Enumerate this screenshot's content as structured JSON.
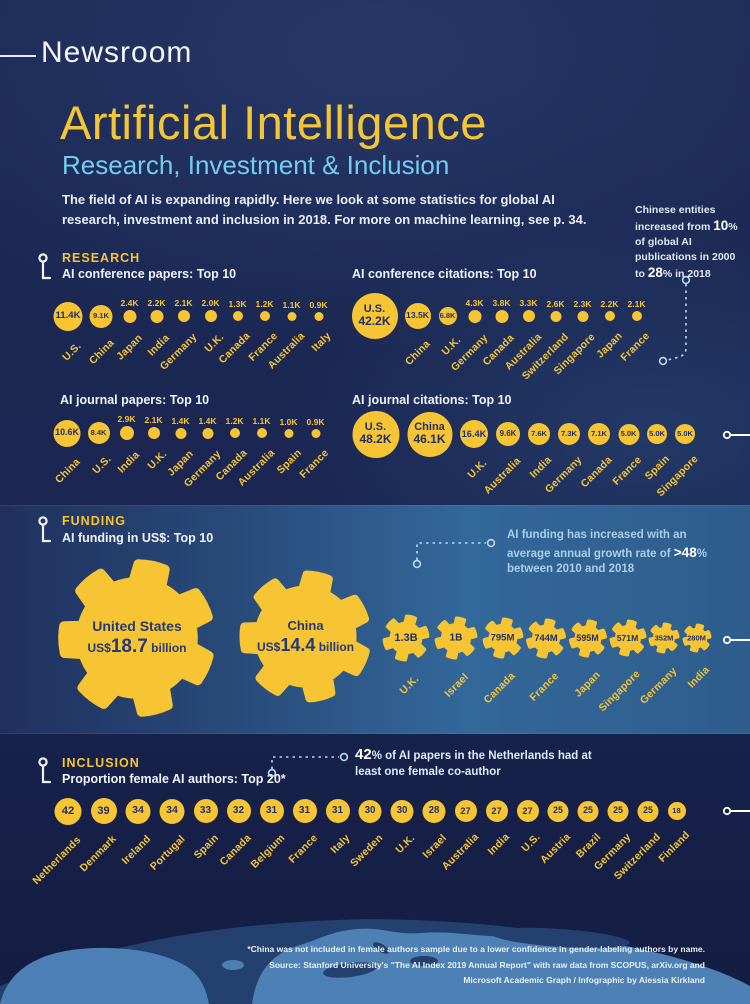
{
  "header": {
    "brand": "Newsroom"
  },
  "hero": {
    "title": "Artificial Intelligence",
    "subtitle": "Research, Investment & Inclusion",
    "intro": "The field of AI is expanding rapidly. Here we look at some statistics for global AI research, investment and inclusion in 2018. For more on machine learning, see p. 34."
  },
  "china_note": {
    "t1": "Chinese entities increased from ",
    "b1": "10",
    "t2": "% of global AI publications in 2000 to ",
    "b2": "28",
    "t3": "% in 2018"
  },
  "research": {
    "heading": "RESEARCH",
    "charts": [
      {
        "title": "AI conference papers: Top 10",
        "items": [
          {
            "label": "U.S.",
            "value": "11.4K",
            "size": 29,
            "vin": true
          },
          {
            "label": "China",
            "value": "9.1K",
            "size": 23,
            "vin": true
          },
          {
            "label": "Japan",
            "value": "2.4K",
            "size": 13
          },
          {
            "label": "India",
            "value": "2.2K",
            "size": 13
          },
          {
            "label": "Germany",
            "value": "2.1K",
            "size": 12
          },
          {
            "label": "U.K.",
            "value": "2.0K",
            "size": 12
          },
          {
            "label": "Canada",
            "value": "1.3K",
            "size": 10
          },
          {
            "label": "France",
            "value": "1.2K",
            "size": 10
          },
          {
            "label": "Australia",
            "value": "1.1K",
            "size": 9
          },
          {
            "label": "Italy",
            "value": "0.9K",
            "size": 9
          }
        ]
      },
      {
        "title": "AI conference citations: Top 10",
        "items": [
          {
            "label": "U.S.",
            "value": "42.2K",
            "size": 46,
            "vin": true,
            "lin": true
          },
          {
            "label": "China",
            "value": "13.5K",
            "size": 26,
            "vin": true
          },
          {
            "label": "U.K.",
            "value": "6.8K",
            "size": 18,
            "vin": true
          },
          {
            "label": "Germany",
            "value": "4.3K",
            "size": 13
          },
          {
            "label": "Canada",
            "value": "3.8K",
            "size": 13
          },
          {
            "label": "Australia",
            "value": "3.3K",
            "size": 12
          },
          {
            "label": "Switzerland",
            "value": "2.6K",
            "size": 11
          },
          {
            "label": "Singapore",
            "value": "2.3K",
            "size": 11
          },
          {
            "label": "Japan",
            "value": "2.2K",
            "size": 10
          },
          {
            "label": "France",
            "value": "2.1K",
            "size": 10
          }
        ]
      },
      {
        "title": "AI journal papers: Top 10",
        "items": [
          {
            "label": "China",
            "value": "10.6K",
            "size": 27,
            "vin": true
          },
          {
            "label": "U.S.",
            "value": "8.4K",
            "size": 22,
            "vin": true
          },
          {
            "label": "India",
            "value": "2.9K",
            "size": 14
          },
          {
            "label": "U.K.",
            "value": "2.1K",
            "size": 12
          },
          {
            "label": "Japan",
            "value": "1.4K",
            "size": 11
          },
          {
            "label": "Germany",
            "value": "1.4K",
            "size": 11
          },
          {
            "label": "Canada",
            "value": "1.2K",
            "size": 10
          },
          {
            "label": "Australia",
            "value": "1.1K",
            "size": 10
          },
          {
            "label": "Spain",
            "value": "1.0K",
            "size": 9
          },
          {
            "label": "France",
            "value": "0.9K",
            "size": 9
          }
        ]
      },
      {
        "title": "AI journal citations: Top 10",
        "items": [
          {
            "label": "U.S.",
            "value": "48.2K",
            "size": 47,
            "vin": true,
            "lin": true
          },
          {
            "label": "China",
            "value": "46.1K",
            "size": 45,
            "vin": true,
            "lin": true
          },
          {
            "label": "U.K.",
            "value": "16.4K",
            "size": 28,
            "vin": true
          },
          {
            "label": "Australia",
            "value": "9.6K",
            "size": 24,
            "vin": true
          },
          {
            "label": "India",
            "value": "7.6K",
            "size": 22,
            "vin": true
          },
          {
            "label": "Germany",
            "value": "7.3K",
            "size": 22,
            "vin": true
          },
          {
            "label": "Canada",
            "value": "7.1K",
            "size": 22,
            "vin": true
          },
          {
            "label": "France",
            "value": "5.0K",
            "size": 21,
            "vin": true
          },
          {
            "label": "Spain",
            "value": "5.0K",
            "size": 20,
            "vin": true
          },
          {
            "label": "Singapore",
            "value": "5.0K",
            "size": 20,
            "vin": true
          }
        ]
      }
    ]
  },
  "funding": {
    "heading": "FUNDING",
    "subtitle": "AI funding in US$: Top 10",
    "note": {
      "t1": "AI funding has increased with an average annual growth rate of ",
      "b": ">48",
      "t2": "% between 2010 and 2018"
    },
    "big_gears": [
      {
        "name": "United States",
        "prefix": "US$",
        "amount": "18.7",
        "unit": " billion"
      },
      {
        "name": "China",
        "prefix": "US$",
        "amount": "14.4",
        "unit": " billion"
      }
    ],
    "small_gears": [
      {
        "label": "U.K.",
        "value": "1.3B",
        "size": 46,
        "slot": 52
      },
      {
        "label": "Israel",
        "value": "1B",
        "size": 42,
        "slot": 48
      },
      {
        "label": "Canada",
        "value": "795M",
        "size": 40,
        "slot": 45
      },
      {
        "label": "France",
        "value": "744M",
        "size": 39,
        "slot": 42
      },
      {
        "label": "Japan",
        "value": "595M",
        "size": 37,
        "slot": 41
      },
      {
        "label": "Singapore",
        "value": "571M",
        "size": 36,
        "slot": 39
      },
      {
        "label": "Germany",
        "value": "352M",
        "size": 30,
        "slot": 34
      },
      {
        "label": "India",
        "value": "280M",
        "size": 28,
        "slot": 31
      }
    ]
  },
  "inclusion": {
    "heading": "INCLUSION",
    "subtitle": "Proportion female AI authors: Top 20*",
    "note": {
      "b": "42",
      "t": "% of AI papers in the Netherlands had at least one female co-author"
    },
    "items": [
      {
        "label": "Netherlands",
        "value": "42",
        "size": 27,
        "vin": true
      },
      {
        "label": "Denmark",
        "value": "39",
        "size": 26,
        "vin": true
      },
      {
        "label": "Ireland",
        "value": "34",
        "size": 25,
        "vin": true
      },
      {
        "label": "Portugal",
        "value": "34",
        "size": 25,
        "vin": true
      },
      {
        "label": "Spain",
        "value": "33",
        "size": 24,
        "vin": true
      },
      {
        "label": "Canada",
        "value": "32",
        "size": 24,
        "vin": true
      },
      {
        "label": "Belgium",
        "value": "31",
        "size": 24,
        "vin": true
      },
      {
        "label": "France",
        "value": "31",
        "size": 24,
        "vin": true
      },
      {
        "label": "Italy",
        "value": "31",
        "size": 24,
        "vin": true
      },
      {
        "label": "Sweden",
        "value": "30",
        "size": 23,
        "vin": true
      },
      {
        "label": "U.K.",
        "value": "30",
        "size": 23,
        "vin": true
      },
      {
        "label": "Israel",
        "value": "28",
        "size": 23,
        "vin": true
      },
      {
        "label": "Australia",
        "value": "27",
        "size": 22,
        "vin": true
      },
      {
        "label": "India",
        "value": "27",
        "size": 22,
        "vin": true
      },
      {
        "label": "U.S.",
        "value": "27",
        "size": 22,
        "vin": true
      },
      {
        "label": "Austria",
        "value": "25",
        "size": 21,
        "vin": true
      },
      {
        "label": "Brazil",
        "value": "25",
        "size": 21,
        "vin": true
      },
      {
        "label": "Germany",
        "value": "25",
        "size": 21,
        "vin": true
      },
      {
        "label": "Switzerland",
        "value": "25",
        "size": 21,
        "vin": true
      },
      {
        "label": "Finland",
        "value": "18",
        "size": 18,
        "vin": true
      }
    ]
  },
  "footer": {
    "line1": "*China was not included in female authors sample due to a lower confidence in gender-labeling authors by name.",
    "line2": "Source: Stanford University's \"The AI Index 2019 Annual Report\" with raw data from SCOPUS, arXiv.org and",
    "line3": "Microsoft Academic Graph / Infographic by Alessia Kirkland"
  },
  "colors": {
    "yellow": "#f7c433",
    "navy_text": "#1e3166",
    "light_blue": "#72cdf0",
    "band_steel": "#33689a",
    "map_land": "#4d80b4"
  },
  "chart_data": [
    {
      "type": "bubble",
      "title": "AI conference papers: Top 10",
      "unit": "thousand papers",
      "categories": [
        "U.S.",
        "China",
        "Japan",
        "India",
        "Germany",
        "U.K.",
        "Canada",
        "France",
        "Australia",
        "Italy"
      ],
      "values": [
        11.4,
        9.1,
        2.4,
        2.2,
        2.1,
        2.0,
        1.3,
        1.2,
        1.1,
        0.9
      ]
    },
    {
      "type": "bubble",
      "title": "AI conference citations: Top 10",
      "unit": "thousand citations",
      "categories": [
        "U.S.",
        "China",
        "U.K.",
        "Germany",
        "Canada",
        "Australia",
        "Switzerland",
        "Singapore",
        "Japan",
        "France"
      ],
      "values": [
        42.2,
        13.5,
        6.8,
        4.3,
        3.8,
        3.3,
        2.6,
        2.3,
        2.2,
        2.1
      ]
    },
    {
      "type": "bubble",
      "title": "AI journal papers: Top 10",
      "unit": "thousand papers",
      "categories": [
        "China",
        "U.S.",
        "India",
        "U.K.",
        "Japan",
        "Germany",
        "Canada",
        "Australia",
        "Spain",
        "France"
      ],
      "values": [
        10.6,
        8.4,
        2.9,
        2.1,
        1.4,
        1.4,
        1.2,
        1.1,
        1.0,
        0.9
      ]
    },
    {
      "type": "bubble",
      "title": "AI journal citations: Top 10",
      "unit": "thousand citations",
      "categories": [
        "U.S.",
        "China",
        "U.K.",
        "Australia",
        "India",
        "Germany",
        "Canada",
        "France",
        "Spain",
        "Singapore"
      ],
      "values": [
        48.2,
        46.1,
        16.4,
        9.6,
        7.6,
        7.3,
        7.1,
        5.0,
        5.0,
        5.0
      ]
    },
    {
      "type": "gear",
      "title": "AI funding in US$: Top 10",
      "unit": "US$",
      "categories": [
        "United States",
        "China",
        "U.K.",
        "Israel",
        "Canada",
        "France",
        "Japan",
        "Singapore",
        "Germany",
        "India"
      ],
      "values": [
        "18.7B",
        "14.4B",
        "1.3B",
        "1B",
        "795M",
        "744M",
        "595M",
        "571M",
        "352M",
        "280M"
      ]
    },
    {
      "type": "bubble",
      "title": "Proportion female AI authors: Top 20*",
      "unit": "%",
      "categories": [
        "Netherlands",
        "Denmark",
        "Ireland",
        "Portugal",
        "Spain",
        "Canada",
        "Belgium",
        "France",
        "Italy",
        "Sweden",
        "U.K.",
        "Israel",
        "Australia",
        "India",
        "U.S.",
        "Austria",
        "Brazil",
        "Germany",
        "Switzerland",
        "Finland"
      ],
      "values": [
        42,
        39,
        34,
        34,
        33,
        32,
        31,
        31,
        31,
        30,
        30,
        28,
        27,
        27,
        27,
        25,
        25,
        25,
        25,
        18
      ],
      "annotations": [
        "42% of AI papers in the Netherlands had at least one female co-author",
        "Chinese entities increased from 10% of global AI publications in 2000 to 28% in 2018",
        "AI funding has increased with an average annual growth rate of >48% between 2010 and 2018"
      ]
    }
  ]
}
